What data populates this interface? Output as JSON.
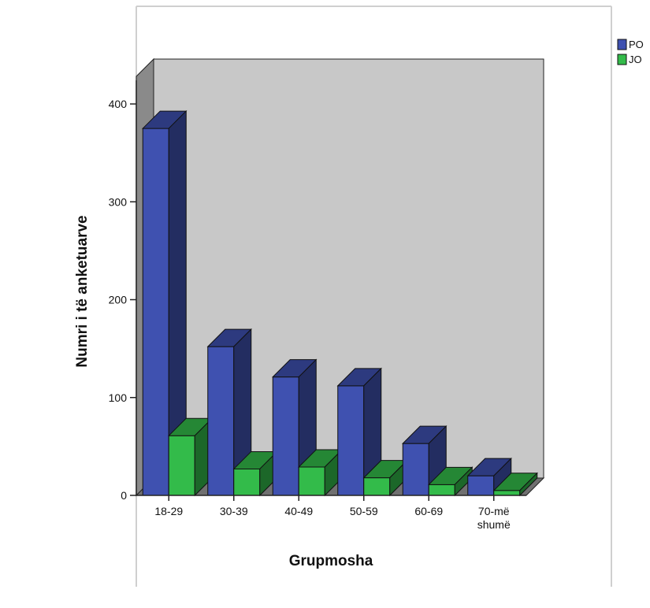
{
  "chart_data": {
    "type": "bar",
    "style": "3d-clustered",
    "categories": [
      "18-29",
      "30-39",
      "40-49",
      "50-59",
      "60-69",
      "70-më shumë"
    ],
    "category_lines": [
      [
        "18-29"
      ],
      [
        "30-39"
      ],
      [
        "40-49"
      ],
      [
        "50-59"
      ],
      [
        "60-69"
      ],
      [
        "70-më",
        "shumë"
      ]
    ],
    "series": [
      {
        "name": "PO",
        "values": [
          375,
          152,
          121,
          112,
          53,
          20
        ],
        "color": "#3f51b0"
      },
      {
        "name": "JO",
        "values": [
          61,
          27,
          29,
          18,
          11,
          5
        ],
        "color": "#33bb4a"
      }
    ],
    "xlabel": "Grupmosha",
    "ylabel": "Numri i të anketuarve",
    "ylim": [
      0,
      400
    ],
    "yticks": [
      0,
      100,
      200,
      300,
      400
    ],
    "legend": "top-right",
    "colors": {
      "backwall": "#c8c8c8",
      "floor": "#707070",
      "sidewall": "#8a8a8a"
    }
  }
}
